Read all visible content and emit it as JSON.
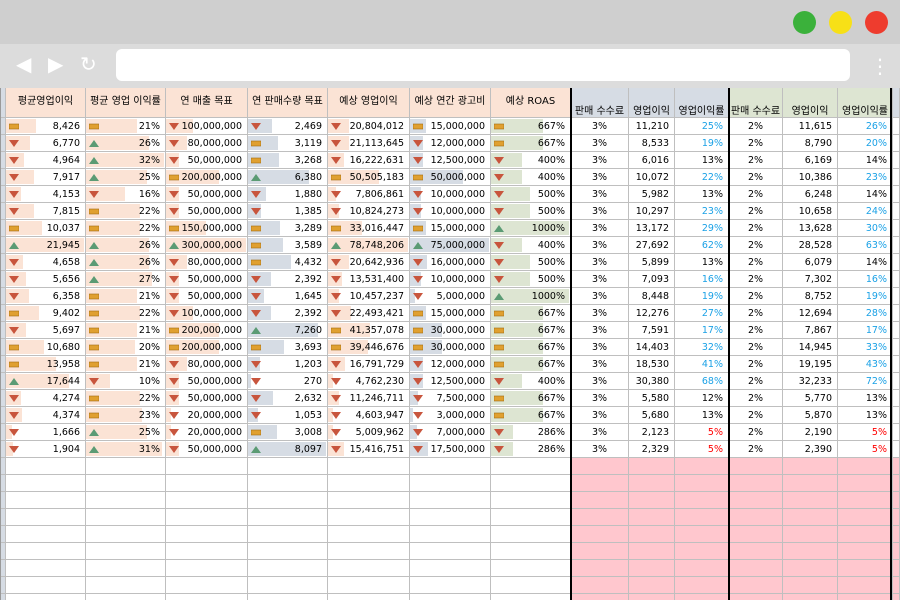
{
  "colors": {
    "salmon": "#fbe3d5",
    "steel": "#d6dce4",
    "sage": "#dde5d2",
    "pink": "#ffc7ce",
    "up": "#5b9b74",
    "down": "#c8553d",
    "flat": "#e0a030",
    "blue_text": "#1aa1e6",
    "red_text": "#ff0000"
  },
  "browser": {
    "back_icon": "◀",
    "forward_icon": "▶",
    "reload_icon": "↻",
    "menu_icon": "⋮"
  },
  "headers": {
    "main": [
      "평균영업이익",
      "평균 영업 이익률",
      "연 매출 목표",
      "연 판매수량 목표",
      "예상 영업이익",
      "예상 연간 광고비",
      "예상 ROAS"
    ],
    "g1": [
      "판매 수수료",
      "영업이익",
      "영업이익률"
    ],
    "g2": [
      "판매 수수료",
      "영업이익",
      "영업이익률"
    ]
  },
  "rows": [
    {
      "a": "8,426",
      "ai": "flat",
      "b": "21%",
      "bi": "flat",
      "c": "100,000,000",
      "ci": "down",
      "d": "2,469",
      "di": "down",
      "e": "20,804,012",
      "ei": "down",
      "f": "15,000,000",
      "fi": "flat",
      "g": "667%",
      "gi": "flat",
      "p1": "3%",
      "o1": "11,210",
      "m1": "25%",
      "m1c": "blue",
      "p2": "2%",
      "o2": "11,615",
      "m2": "26%",
      "m2c": "blue"
    },
    {
      "a": "6,770",
      "ai": "down",
      "b": "26%",
      "bi": "up",
      "c": "80,000,000",
      "ci": "down",
      "d": "3,119",
      "di": "flat",
      "e": "21,113,645",
      "ei": "down",
      "f": "12,000,000",
      "fi": "down",
      "g": "667%",
      "gi": "flat",
      "p1": "3%",
      "o1": "8,533",
      "m1": "19%",
      "m1c": "blue",
      "p2": "2%",
      "o2": "8,790",
      "m2": "20%",
      "m2c": "blue"
    },
    {
      "a": "4,964",
      "ai": "down",
      "b": "32%",
      "bi": "up",
      "c": "50,000,000",
      "ci": "down",
      "d": "3,268",
      "di": "flat",
      "e": "16,222,631",
      "ei": "down",
      "f": "12,500,000",
      "fi": "down",
      "g": "400%",
      "gi": "down",
      "p1": "3%",
      "o1": "6,016",
      "m1": "13%",
      "m1c": "",
      "p2": "2%",
      "o2": "6,169",
      "m2": "14%",
      "m2c": ""
    },
    {
      "a": "7,917",
      "ai": "down",
      "b": "25%",
      "bi": "up",
      "c": "200,000,000",
      "ci": "flat",
      "d": "6,380",
      "di": "up",
      "e": "50,505,183",
      "ei": "flat",
      "f": "50,000,000",
      "fi": "flat",
      "g": "400%",
      "gi": "down",
      "p1": "3%",
      "o1": "10,072",
      "m1": "22%",
      "m1c": "blue",
      "p2": "2%",
      "o2": "10,386",
      "m2": "23%",
      "m2c": "blue"
    },
    {
      "a": "4,153",
      "ai": "down",
      "b": "16%",
      "bi": "down",
      "c": "50,000,000",
      "ci": "down",
      "d": "1,880",
      "di": "down",
      "e": "7,806,861",
      "ei": "down",
      "f": "10,000,000",
      "fi": "down",
      "g": "500%",
      "gi": "down",
      "p1": "3%",
      "o1": "5,982",
      "m1": "13%",
      "m1c": "",
      "p2": "2%",
      "o2": "6,248",
      "m2": "14%",
      "m2c": ""
    },
    {
      "a": "7,815",
      "ai": "down",
      "b": "22%",
      "bi": "flat",
      "c": "50,000,000",
      "ci": "down",
      "d": "1,385",
      "di": "down",
      "e": "10,824,273",
      "ei": "down",
      "f": "10,000,000",
      "fi": "down",
      "g": "500%",
      "gi": "down",
      "p1": "3%",
      "o1": "10,297",
      "m1": "23%",
      "m1c": "blue",
      "p2": "2%",
      "o2": "10,658",
      "m2": "24%",
      "m2c": "blue"
    },
    {
      "a": "10,037",
      "ai": "flat",
      "b": "22%",
      "bi": "flat",
      "c": "150,000,000",
      "ci": "flat",
      "d": "3,289",
      "di": "flat",
      "e": "33,016,447",
      "ei": "flat",
      "f": "15,000,000",
      "fi": "flat",
      "g": "1000%",
      "gi": "up",
      "p1": "3%",
      "o1": "13,172",
      "m1": "29%",
      "m1c": "blue",
      "p2": "2%",
      "o2": "13,628",
      "m2": "30%",
      "m2c": "blue"
    },
    {
      "a": "21,945",
      "ai": "up",
      "b": "26%",
      "bi": "up",
      "c": "300,000,000",
      "ci": "up",
      "d": "3,589",
      "di": "flat",
      "e": "78,748,206",
      "ei": "up",
      "f": "75,000,000",
      "fi": "up",
      "g": "400%",
      "gi": "down",
      "p1": "3%",
      "o1": "27,692",
      "m1": "62%",
      "m1c": "blue",
      "p2": "2%",
      "o2": "28,528",
      "m2": "63%",
      "m2c": "blue"
    },
    {
      "a": "4,658",
      "ai": "down",
      "b": "26%",
      "bi": "up",
      "c": "80,000,000",
      "ci": "down",
      "d": "4,432",
      "di": "flat",
      "e": "20,642,936",
      "ei": "down",
      "f": "16,000,000",
      "fi": "down",
      "g": "500%",
      "gi": "down",
      "p1": "3%",
      "o1": "5,899",
      "m1": "13%",
      "m1c": "",
      "p2": "2%",
      "o2": "6,079",
      "m2": "14%",
      "m2c": ""
    },
    {
      "a": "5,656",
      "ai": "down",
      "b": "27%",
      "bi": "up",
      "c": "50,000,000",
      "ci": "down",
      "d": "2,392",
      "di": "down",
      "e": "13,531,400",
      "ei": "down",
      "f": "10,000,000",
      "fi": "down",
      "g": "500%",
      "gi": "down",
      "p1": "3%",
      "o1": "7,093",
      "m1": "16%",
      "m1c": "blue",
      "p2": "2%",
      "o2": "7,302",
      "m2": "16%",
      "m2c": "blue"
    },
    {
      "a": "6,358",
      "ai": "down",
      "b": "21%",
      "bi": "flat",
      "c": "50,000,000",
      "ci": "down",
      "d": "1,645",
      "di": "down",
      "e": "10,457,237",
      "ei": "down",
      "f": "5,000,000",
      "fi": "down",
      "g": "1000%",
      "gi": "up",
      "p1": "3%",
      "o1": "8,448",
      "m1": "19%",
      "m1c": "blue",
      "p2": "2%",
      "o2": "8,752",
      "m2": "19%",
      "m2c": "blue"
    },
    {
      "a": "9,402",
      "ai": "flat",
      "b": "22%",
      "bi": "flat",
      "c": "100,000,000",
      "ci": "down",
      "d": "2,392",
      "di": "down",
      "e": "22,493,421",
      "ei": "down",
      "f": "15,000,000",
      "fi": "flat",
      "g": "667%",
      "gi": "flat",
      "p1": "3%",
      "o1": "12,276",
      "m1": "27%",
      "m1c": "blue",
      "p2": "2%",
      "o2": "12,694",
      "m2": "28%",
      "m2c": "blue"
    },
    {
      "a": "5,697",
      "ai": "down",
      "b": "21%",
      "bi": "flat",
      "c": "200,000,000",
      "ci": "flat",
      "d": "7,260",
      "di": "up",
      "e": "41,357,078",
      "ei": "flat",
      "f": "30,000,000",
      "fi": "flat",
      "g": "667%",
      "gi": "flat",
      "p1": "3%",
      "o1": "7,591",
      "m1": "17%",
      "m1c": "blue",
      "p2": "2%",
      "o2": "7,867",
      "m2": "17%",
      "m2c": "blue"
    },
    {
      "a": "10,680",
      "ai": "flat",
      "b": "20%",
      "bi": "flat",
      "c": "200,000,000",
      "ci": "flat",
      "d": "3,693",
      "di": "flat",
      "e": "39,446,676",
      "ei": "flat",
      "f": "30,000,000",
      "fi": "flat",
      "g": "667%",
      "gi": "flat",
      "p1": "3%",
      "o1": "14,403",
      "m1": "32%",
      "m1c": "blue",
      "p2": "2%",
      "o2": "14,945",
      "m2": "33%",
      "m2c": "blue"
    },
    {
      "a": "13,958",
      "ai": "flat",
      "b": "21%",
      "bi": "flat",
      "c": "80,000,000",
      "ci": "down",
      "d": "1,203",
      "di": "down",
      "e": "16,791,729",
      "ei": "down",
      "f": "12,000,000",
      "fi": "down",
      "g": "667%",
      "gi": "flat",
      "p1": "3%",
      "o1": "18,530",
      "m1": "41%",
      "m1c": "blue",
      "p2": "2%",
      "o2": "19,195",
      "m2": "43%",
      "m2c": "blue"
    },
    {
      "a": "17,644",
      "ai": "up",
      "b": "10%",
      "bi": "down",
      "c": "50,000,000",
      "ci": "down",
      "d": "270",
      "di": "down",
      "e": "4,762,230",
      "ei": "down",
      "f": "12,500,000",
      "fi": "down",
      "g": "400%",
      "gi": "down",
      "p1": "3%",
      "o1": "30,380",
      "m1": "68%",
      "m1c": "blue",
      "p2": "2%",
      "o2": "32,233",
      "m2": "72%",
      "m2c": "blue"
    },
    {
      "a": "4,274",
      "ai": "down",
      "b": "22%",
      "bi": "flat",
      "c": "50,000,000",
      "ci": "down",
      "d": "2,632",
      "di": "down",
      "e": "11,246,711",
      "ei": "down",
      "f": "7,500,000",
      "fi": "down",
      "g": "667%",
      "gi": "flat",
      "p1": "3%",
      "o1": "5,580",
      "m1": "12%",
      "m1c": "",
      "p2": "2%",
      "o2": "5,770",
      "m2": "13%",
      "m2c": ""
    },
    {
      "a": "4,374",
      "ai": "down",
      "b": "23%",
      "bi": "flat",
      "c": "20,000,000",
      "ci": "down",
      "d": "1,053",
      "di": "down",
      "e": "4,603,947",
      "ei": "down",
      "f": "3,000,000",
      "fi": "down",
      "g": "667%",
      "gi": "flat",
      "p1": "3%",
      "o1": "5,680",
      "m1": "13%",
      "m1c": "",
      "p2": "2%",
      "o2": "5,870",
      "m2": "13%",
      "m2c": ""
    },
    {
      "a": "1,666",
      "ai": "down",
      "b": "25%",
      "bi": "up",
      "c": "20,000,000",
      "ci": "down",
      "d": "3,008",
      "di": "flat",
      "e": "5,009,962",
      "ei": "down",
      "f": "7,000,000",
      "fi": "down",
      "g": "286%",
      "gi": "down",
      "p1": "3%",
      "o1": "2,123",
      "m1": "5%",
      "m1c": "red",
      "p2": "2%",
      "o2": "2,190",
      "m2": "5%",
      "m2c": "red"
    },
    {
      "a": "1,904",
      "ai": "down",
      "b": "31%",
      "bi": "up",
      "c": "50,000,000",
      "ci": "down",
      "d": "8,097",
      "di": "up",
      "e": "15,416,751",
      "ei": "down",
      "f": "17,500,000",
      "fi": "down",
      "g": "286%",
      "gi": "down",
      "p1": "3%",
      "o1": "2,329",
      "m1": "5%",
      "m1c": "red",
      "p2": "2%",
      "o2": "2,390",
      "m2": "5%",
      "m2c": "red"
    }
  ]
}
